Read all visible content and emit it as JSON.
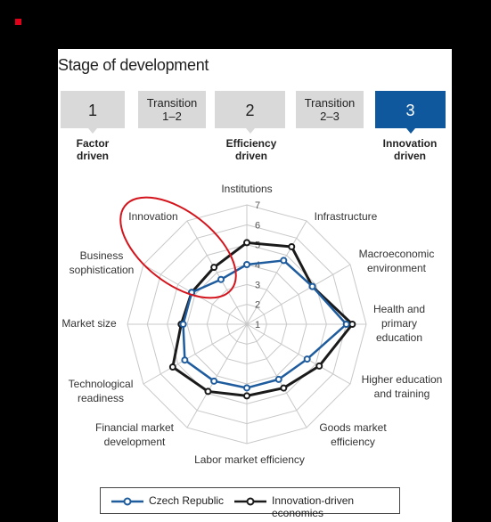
{
  "title": "Stage of development",
  "stages": [
    {
      "label": "1",
      "kind": "num",
      "caption": ""
    },
    {
      "label": "Transition\n1–2",
      "kind": "trans",
      "caption": ""
    },
    {
      "label": "2",
      "kind": "num",
      "caption": ""
    },
    {
      "label": "Transition\n2–3",
      "kind": "trans",
      "caption": ""
    },
    {
      "label": "3",
      "kind": "num",
      "caption": "",
      "active": true
    }
  ],
  "stage_captions": {
    "factor": "Factor\ndriven",
    "efficiency": "Efficiency\ndriven",
    "innovation": "Innovation\ndriven"
  },
  "colors": {
    "czech": "#1f5c9e",
    "innovation": "#1a1a1a",
    "grid": "#c8c8c8",
    "highlight": "#d4141c",
    "stage_active": "#10589d",
    "stage_box": "#d9d9d9"
  },
  "chart_data": {
    "type": "radar",
    "axes": [
      "Institutions",
      "Infrastructure",
      "Macroeconomic\nenvironment",
      "Health and\nprimary\neducation",
      "Higher education\nand training",
      "Goods market\nefficiency",
      "Labor market efficiency",
      "Financial market\ndevelopment",
      "Technological\nreadiness",
      "Market size",
      "Business\nsophistication",
      "Innovation"
    ],
    "ticks": [
      "1",
      "2",
      "3",
      "4",
      "5",
      "6",
      "7"
    ],
    "range": [
      1,
      7
    ],
    "series": [
      {
        "name": "Czech Republic",
        "values": [
          4.0,
          4.7,
          4.8,
          6.0,
          4.5,
          4.2,
          4.2,
          4.3,
          4.6,
          4.2,
          4.2,
          3.6
        ]
      },
      {
        "name": "Innovation-driven economies",
        "values": [
          5.1,
          5.5,
          4.8,
          6.3,
          5.2,
          4.7,
          4.6,
          4.9,
          5.3,
          4.3,
          4.2,
          4.3
        ]
      }
    ],
    "legend": "bottom"
  }
}
